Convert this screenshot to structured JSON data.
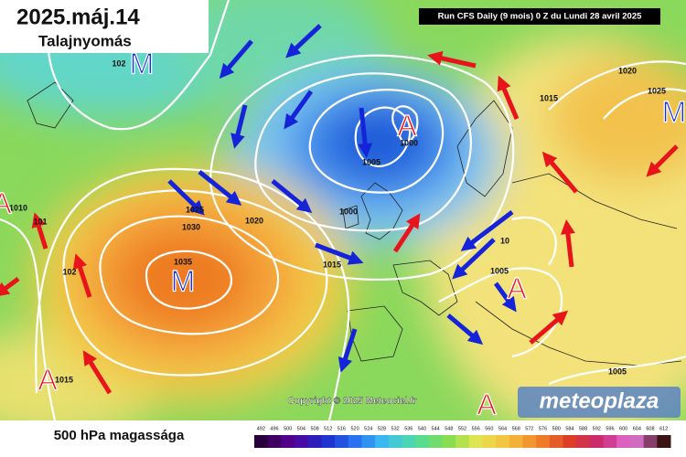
{
  "header": {
    "date": "2025.máj.14",
    "subtitle": "Talajnyomás"
  },
  "run_info": "Run CFS Daily (9 mois) 0 Z du Lundi 28 avril 2025",
  "copyright": "Copyright © 2025 Meteociel.fr",
  "logo": "meteoplaza",
  "isobar_labels": [
    "102",
    "1020",
    "1025",
    "1015",
    "1000",
    "1005",
    "1010",
    "101",
    "1025",
    "1030",
    "1020",
    "1000",
    "1035",
    "1015",
    "102",
    "1005",
    "10",
    "1015",
    "1005"
  ],
  "pressure_centers": [
    "M",
    "M",
    "A",
    "M",
    "A",
    "A",
    "A",
    "A"
  ],
  "footer": {
    "title": "500 hPa magassága",
    "scale": [
      492,
      496,
      500,
      504,
      508,
      512,
      516,
      520,
      524,
      528,
      532,
      536,
      540,
      544,
      548,
      552,
      556,
      560,
      564,
      568,
      572,
      576,
      580,
      584,
      588,
      592,
      596,
      600,
      604,
      608,
      612
    ]
  }
}
